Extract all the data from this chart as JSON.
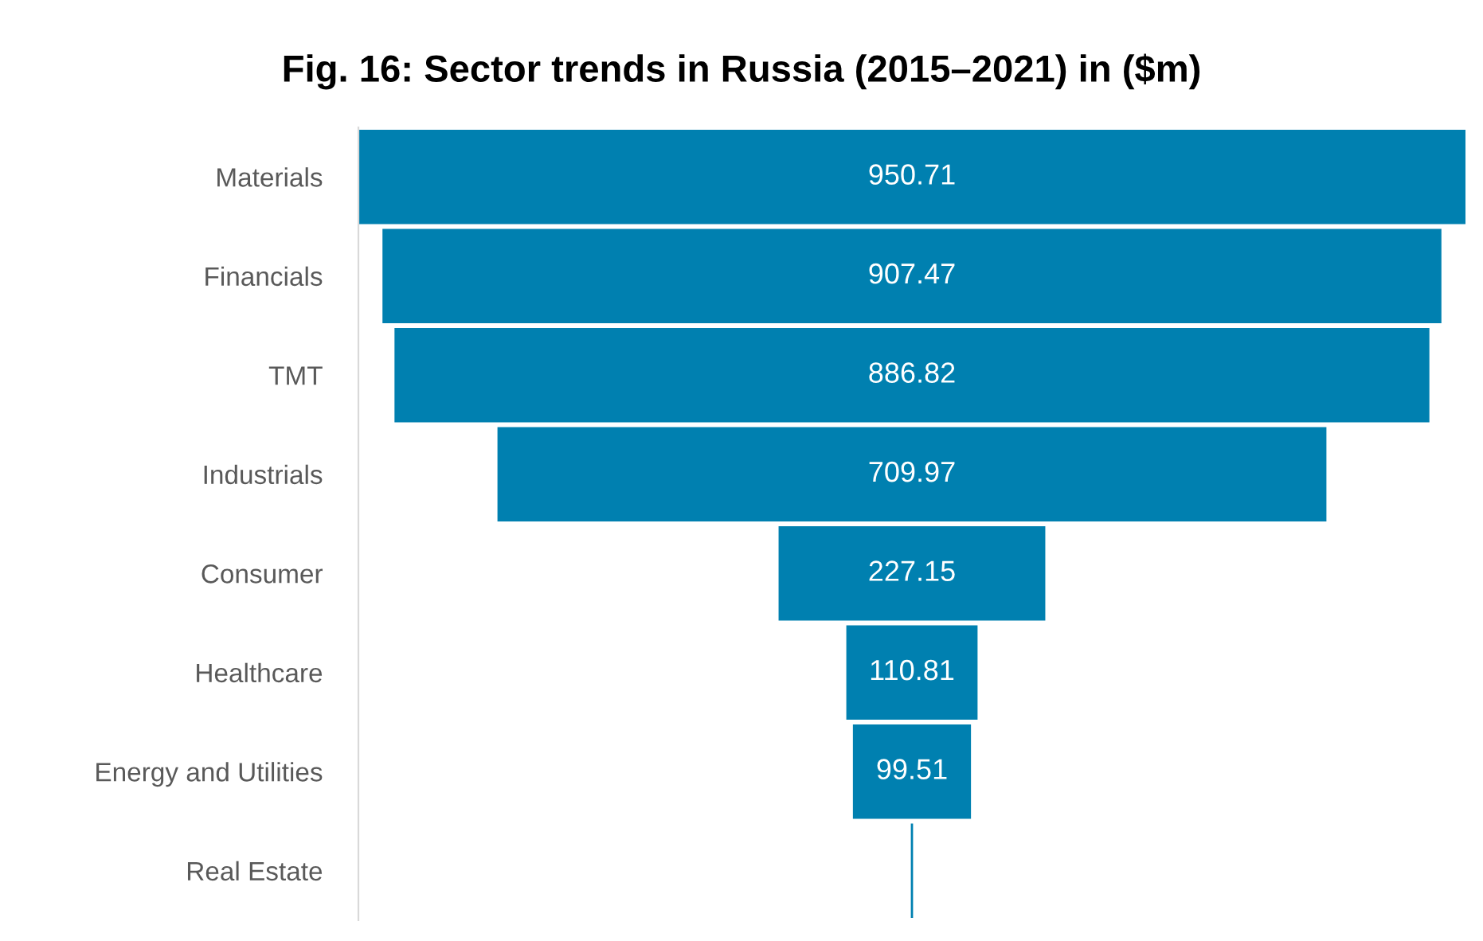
{
  "chart_data": {
    "type": "other",
    "title": "Fig. 16: Sector trends in Russia (2015–2021) in ($m)",
    "categories": [
      "Materials",
      "Financials",
      "TMT",
      "Industrials",
      "Consumer",
      "Healthcare",
      "Energy and Utilities",
      "Real Estate"
    ],
    "values": [
      950.71,
      907.47,
      886.82,
      709.97,
      227.15,
      110.81,
      99.51,
      null
    ],
    "value_labels": [
      "950.71",
      "907.47",
      "886.82",
      "709.97",
      "227.15",
      "110.81",
      "99.51",
      null
    ],
    "color": "#0080b0"
  }
}
